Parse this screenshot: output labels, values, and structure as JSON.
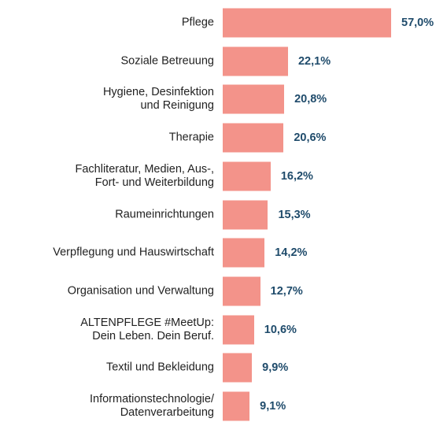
{
  "chart_data": {
    "type": "bar",
    "orientation": "horizontal",
    "categories": [
      "Pflege",
      "Soziale Betreuung",
      "Hygiene, Desinfektion\nund Reinigung",
      "Therapie",
      "Fachliteratur, Medien, Aus-,\nFort- und Weiterbildung",
      "Raumeinrichtungen",
      "Verpflegung und Hauswirtschaft",
      "Organisation und Verwaltung",
      "ALTENPFLEGE #MeetUp:\nDein Leben. Dein Beruf.",
      "Textil und Bekleidung",
      "Informationstechnologie/\nDatenverarbeitung"
    ],
    "values": [
      57.0,
      22.1,
      20.8,
      20.6,
      16.2,
      15.3,
      14.2,
      12.7,
      10.6,
      9.9,
      9.1
    ],
    "value_labels": [
      "57,0%",
      "22,1%",
      "20,8%",
      "20,6%",
      "16,2%",
      "15,3%",
      "14,2%",
      "12,7%",
      "10,6%",
      "9,9%",
      "9,1%"
    ],
    "color": "#f3938a",
    "label_color": "#1f4b6b"
  }
}
